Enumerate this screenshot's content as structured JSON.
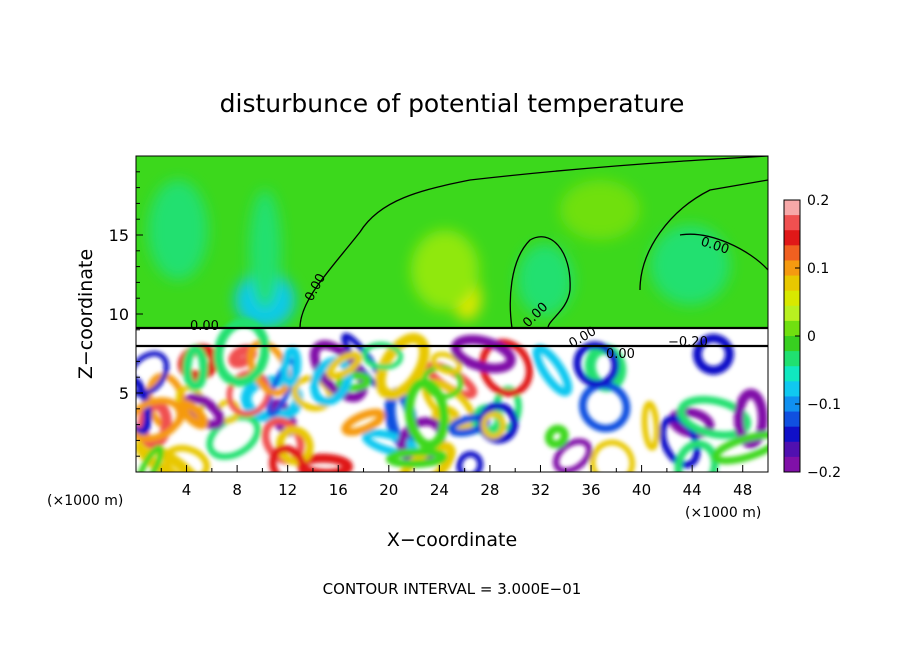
{
  "chart_data": {
    "type": "heatmap",
    "title": "disturbunce of potential temperature",
    "xlabel": "X−coordinate",
    "ylabel": "Z−coordinate",
    "x_unit": "(×1000 m)",
    "y_unit": "(×1000 m)",
    "xlim": [
      0,
      50
    ],
    "ylim": [
      0,
      20
    ],
    "xticks": [
      4,
      8,
      12,
      16,
      20,
      24,
      28,
      32,
      36,
      40,
      44,
      48
    ],
    "yticks": [
      5,
      10,
      15
    ],
    "colorbar": {
      "range": [
        -0.2,
        0.2
      ],
      "ticks": [
        0.2,
        0.1,
        0,
        -0.1,
        -0.2
      ],
      "tick_labels": [
        "0.2",
        "0.1",
        "0",
        "−0.1",
        "−0.2"
      ],
      "colors": [
        "#f7a8a8",
        "#f05050",
        "#e01818",
        "#f06020",
        "#f59a10",
        "#e8c800",
        "#d8e800",
        "#b8f020",
        "#70e010",
        "#38d020",
        "#20e070",
        "#10e8c0",
        "#10c8f0",
        "#1090f0",
        "#1050e0",
        "#1010c8",
        "#5010b0",
        "#8010a8"
      ]
    },
    "contour_labels": [
      "0.00",
      "0.00",
      "0.00",
      "0.00",
      "0.00",
      "0.00",
      "−0.20"
    ],
    "contour_interval": "CONTOUR INTERVAL = 3.000E−01",
    "grid": false,
    "legend": "colorbar-right"
  }
}
